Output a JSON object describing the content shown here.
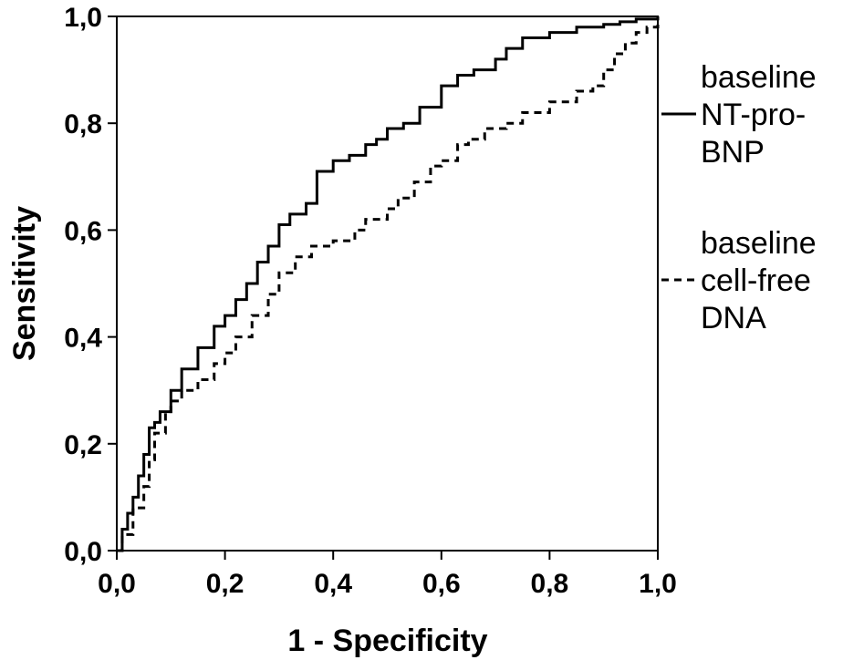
{
  "chart_data": {
    "type": "line",
    "title": "",
    "xlabel": "1 - Specificity",
    "ylabel": "Sensitivity",
    "xlim": [
      0,
      1
    ],
    "ylim": [
      0,
      1
    ],
    "x_ticks": [
      "0,0",
      "0,2",
      "0,4",
      "0,6",
      "0,8",
      "1,0"
    ],
    "y_ticks": [
      "0,0",
      "0,2",
      "0,4",
      "0,6",
      "0,8",
      "1,0"
    ],
    "grid": false,
    "legend_position": "right",
    "series": [
      {
        "name": "baseline NT-pro-BNP",
        "legend_lines": [
          "baseline",
          "NT-pro-",
          "BNP"
        ],
        "style": "solid",
        "x": [
          0.0,
          0.01,
          0.02,
          0.03,
          0.04,
          0.05,
          0.06,
          0.07,
          0.08,
          0.1,
          0.12,
          0.15,
          0.18,
          0.2,
          0.22,
          0.24,
          0.26,
          0.28,
          0.3,
          0.32,
          0.35,
          0.37,
          0.4,
          0.43,
          0.46,
          0.48,
          0.5,
          0.53,
          0.56,
          0.6,
          0.63,
          0.66,
          0.7,
          0.72,
          0.75,
          0.8,
          0.85,
          0.9,
          0.93,
          0.96,
          1.0
        ],
        "y": [
          0.0,
          0.04,
          0.07,
          0.1,
          0.14,
          0.18,
          0.23,
          0.24,
          0.26,
          0.3,
          0.34,
          0.38,
          0.42,
          0.44,
          0.47,
          0.5,
          0.54,
          0.57,
          0.61,
          0.63,
          0.65,
          0.71,
          0.73,
          0.74,
          0.76,
          0.77,
          0.79,
          0.8,
          0.83,
          0.87,
          0.89,
          0.9,
          0.92,
          0.94,
          0.96,
          0.97,
          0.98,
          0.985,
          0.99,
          0.995,
          1.0
        ]
      },
      {
        "name": "baseline cell-free DNA",
        "legend_lines": [
          "baseline",
          "cell-free",
          "DNA"
        ],
        "style": "dashed",
        "x": [
          0.0,
          0.01,
          0.03,
          0.05,
          0.06,
          0.07,
          0.09,
          0.1,
          0.12,
          0.15,
          0.18,
          0.2,
          0.22,
          0.25,
          0.28,
          0.3,
          0.33,
          0.36,
          0.4,
          0.44,
          0.46,
          0.5,
          0.52,
          0.55,
          0.58,
          0.6,
          0.63,
          0.65,
          0.68,
          0.72,
          0.75,
          0.8,
          0.85,
          0.88,
          0.9,
          0.92,
          0.94,
          0.96,
          0.98,
          1.0
        ],
        "y": [
          0.0,
          0.03,
          0.08,
          0.12,
          0.17,
          0.22,
          0.26,
          0.28,
          0.3,
          0.32,
          0.35,
          0.37,
          0.4,
          0.44,
          0.48,
          0.52,
          0.55,
          0.57,
          0.58,
          0.6,
          0.62,
          0.64,
          0.66,
          0.69,
          0.72,
          0.73,
          0.76,
          0.77,
          0.79,
          0.8,
          0.82,
          0.84,
          0.86,
          0.87,
          0.9,
          0.93,
          0.95,
          0.97,
          0.98,
          0.99
        ]
      }
    ]
  }
}
